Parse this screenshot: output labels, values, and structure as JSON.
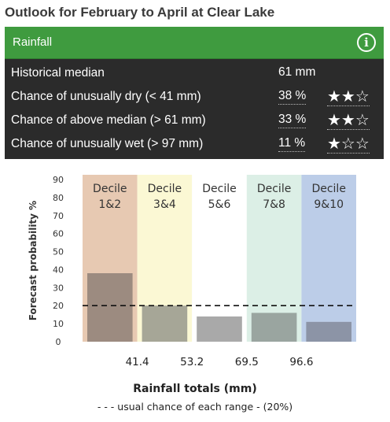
{
  "title": "Outlook for February to April at Clear Lake",
  "panel": {
    "header": "Rainfall",
    "info_icon": "info-icon",
    "rows": [
      {
        "label": "Historical median",
        "value": "61 mm",
        "stars": ""
      },
      {
        "label": "Chance of unusually dry (< 41 mm)",
        "value": "38 %",
        "stars": "★★☆"
      },
      {
        "label": "Chance of above median (> 61 mm)",
        "value": "33 %",
        "stars": "★★☆"
      },
      {
        "label": "Chance of unusually wet (> 97 mm)",
        "value": "11 %",
        "stars": "★☆☆"
      }
    ]
  },
  "chart_data": {
    "type": "bar",
    "categories": [
      "Decile 1&2",
      "Decile 3&4",
      "Decile 5&6",
      "Decile 7&8",
      "Decile 9&10"
    ],
    "category_lines": [
      [
        "Decile",
        "1&2"
      ],
      [
        "Decile",
        "3&4"
      ],
      [
        "Decile",
        "5&6"
      ],
      [
        "Decile",
        "7&8"
      ],
      [
        "Decile",
        "9&10"
      ]
    ],
    "values": [
      38,
      20,
      14,
      16,
      11
    ],
    "ylabel": "Forecast probability %",
    "xlabel": "Rainfall totals (mm)",
    "ylim": [
      0,
      90
    ],
    "yticks": [
      0,
      10,
      20,
      30,
      40,
      50,
      60,
      70,
      80,
      90
    ],
    "xtick_labels": [
      "41.4",
      "53.2",
      "69.5",
      "96.6"
    ],
    "reference_line": {
      "value": 20,
      "label": "- - -  usual chance of each range - (20%)"
    },
    "band_colors": [
      "#e7c9b2",
      "#fbf8d4",
      "#ffffff",
      "#dcefe6",
      "#bccde8"
    ],
    "bar_colors": [
      "#9c8b80",
      "#a6a697",
      "#a9a9a9",
      "#9aa5a0",
      "#8c94a6"
    ]
  }
}
